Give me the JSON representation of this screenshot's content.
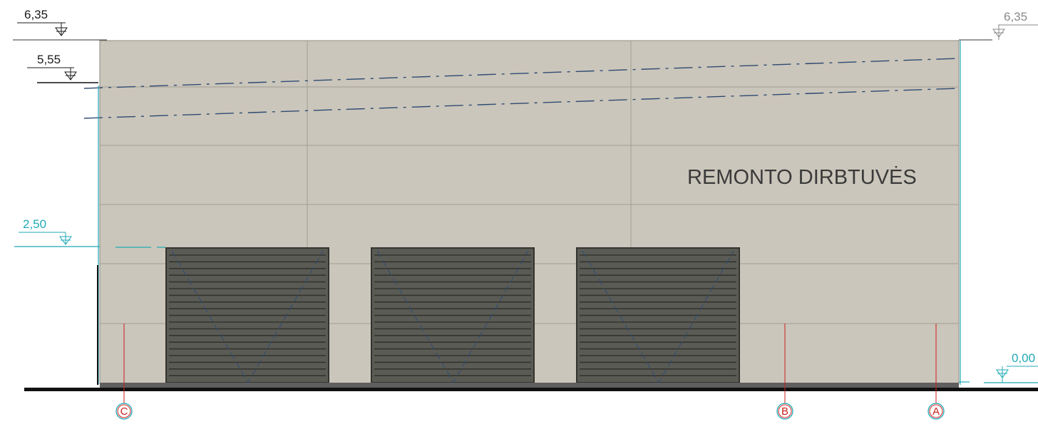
{
  "drawing": {
    "building_label": "REMONTO DIRBTUVĖS",
    "levels": {
      "top_left": "6,35",
      "top_right": "6,35",
      "mid_left": "5,55",
      "door_top": "2,50",
      "ground_right": "0,00"
    },
    "axes": [
      "C",
      "B",
      "A"
    ],
    "door_count": 3,
    "colors": {
      "facade": "#cbc6bb",
      "door": "#5b5b55",
      "door_slats": "#34342f",
      "cyan_lines": "#1fa9b5",
      "blue_dashed": "#2d4b73",
      "axis_red": "#cc1f1f",
      "ground": "#111111"
    },
    "icons": [
      "level-marker-icon",
      "axis-bubble-icon"
    ]
  }
}
